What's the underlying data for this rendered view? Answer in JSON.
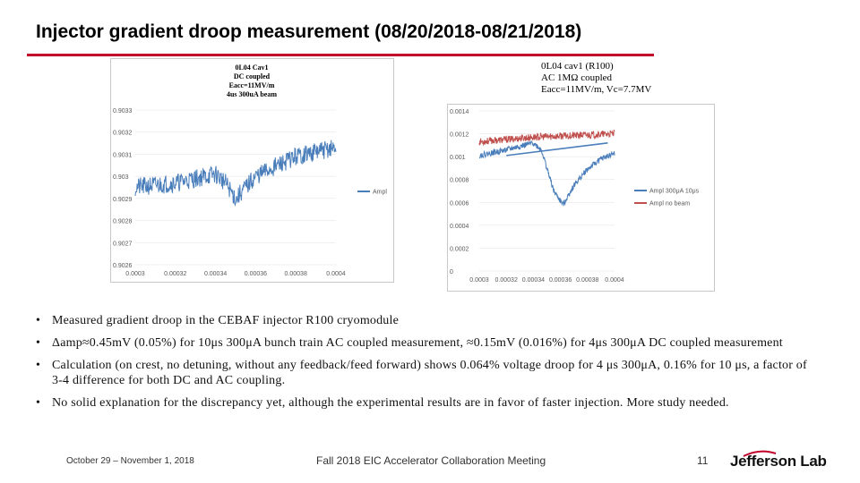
{
  "slide": {
    "title": "Injector gradient droop measurement (08/20/2018-08/21/2018)"
  },
  "charts": {
    "left_caption_lines": [
      "0L04 Cav1",
      "DC coupled",
      "Eacc=11MV/m",
      "4us 300uA beam"
    ],
    "right_caption_lines": [
      "0L04 cav1 (R100)",
      "AC 1MΩ coupled",
      "Eacc=11MV/m, Vc=7.7MV"
    ]
  },
  "chart_data": [
    {
      "type": "line",
      "title": "",
      "x_ticks": [
        "0.0003",
        "0.00032",
        "0.00034",
        "0.00036",
        "0.00038",
        "0.0004"
      ],
      "y_ticks": [
        "0.9033",
        "0.9032",
        "0.9031",
        "0.903",
        "0.9029",
        "0.9028",
        "0.9027",
        "0.9026"
      ],
      "xlim": [
        0.0003,
        0.0004
      ],
      "ylim": [
        0.9026,
        0.9033
      ],
      "legend_position": "right",
      "series": [
        {
          "name": "Ampl",
          "color": "#4a7ebb",
          "x": [
            0.0003,
            0.00032,
            0.00034,
            0.000345,
            0.00035,
            0.00035,
            0.000352,
            0.00036,
            0.00038,
            0.0004
          ],
          "y": [
            0.90295,
            0.90297,
            0.90301,
            0.90297,
            0.9029,
            0.90289,
            0.90292,
            0.903,
            0.90309,
            0.90313
          ]
        }
      ]
    },
    {
      "type": "line",
      "title": "",
      "x_ticks": [
        "0.0003",
        "0.00032",
        "0.00034",
        "0.00036",
        "0.00038",
        "0.0004"
      ],
      "y_ticks": [
        "0.0014",
        "0.0012",
        "0.001",
        "0.0008",
        "0.0006",
        "0.0004",
        "0.0002",
        "0"
      ],
      "xlim": [
        0.0003,
        0.0004
      ],
      "ylim": [
        0,
        0.0014
      ],
      "legend_position": "right",
      "series": [
        {
          "name": "Ampl 300μA 10μs",
          "color": "#4a7ebb",
          "x": [
            0.0003,
            0.00032,
            0.00034,
            0.000346,
            0.00035,
            0.000355,
            0.000362,
            0.00037,
            0.00038,
            0.00039,
            0.0004
          ],
          "y": [
            0.00101,
            0.00106,
            0.00112,
            0.00106,
            0.0009,
            0.0007,
            0.00058,
            0.00075,
            0.00089,
            0.00098,
            0.00103
          ]
        },
        {
          "name": "Ampl no beam",
          "color": "#c0504d",
          "x": [
            0.0003,
            0.00032,
            0.00034,
            0.00036,
            0.00038,
            0.0004
          ],
          "y": [
            0.00113,
            0.00115,
            0.00117,
            0.00118,
            0.00119,
            0.0012
          ]
        }
      ]
    }
  ],
  "bullets": [
    "Measured gradient droop in the CEBAF injector R100 cryomodule",
    "Δamp≈0.45mV (0.05%) for 10μs 300μA bunch train AC coupled measurement, ≈0.15mV (0.016%) for 4μs 300μA DC coupled measurement",
    "Calculation (on crest, no detuning, without any feedback/feed forward) shows 0.064% voltage droop for 4 μs 300μA, 0.16% for 10 μs, a factor of 3-4 difference for both DC and AC coupling.",
    "No solid explanation for the discrepancy yet, although the experimental results are in favor of faster injection. More study needed."
  ],
  "bullet_symbol": "•",
  "footer": {
    "date": "October 29 – November 1, 2018",
    "meeting": "Fall 2018 EIC Accelerator Collaboration Meeting",
    "page": "11",
    "logo": "Jefferson Lab"
  },
  "colors": {
    "title_rule": "#c0002a",
    "series_blue": "#4a7ebb",
    "series_red": "#c0504d"
  }
}
